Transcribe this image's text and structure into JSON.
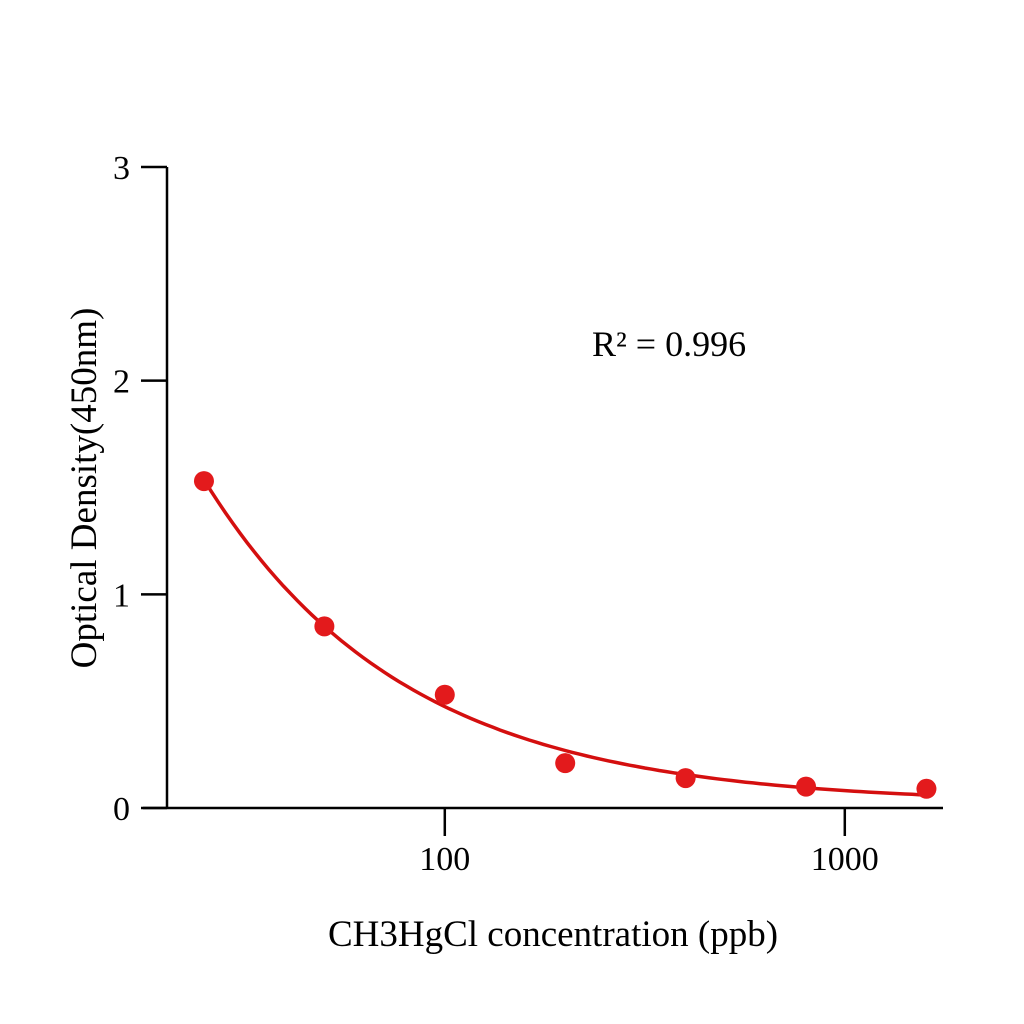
{
  "chart_data": {
    "type": "scatter",
    "title": "",
    "xlabel": "CH3HgCl concentration (ppb)",
    "ylabel": "Optical Density(450nm)",
    "x_scale": "log",
    "xlim": [
      17.6,
      1760
    ],
    "ylim": [
      0,
      3
    ],
    "x_ticks": [
      100,
      1000
    ],
    "x_tick_labels": [
      "100",
      "1000"
    ],
    "y_ticks": [
      0,
      1,
      2,
      3
    ],
    "y_tick_labels": [
      "0",
      "1",
      "2",
      "3"
    ],
    "grid": false,
    "annotation": "R² = 0.996",
    "color": "#e31a1c",
    "curve_color": "#d40f0f",
    "points": {
      "x": [
        25,
        50,
        100,
        200,
        400,
        800,
        1600
      ],
      "y": [
        1.53,
        0.85,
        0.53,
        0.21,
        0.14,
        0.1,
        0.09
      ]
    }
  }
}
